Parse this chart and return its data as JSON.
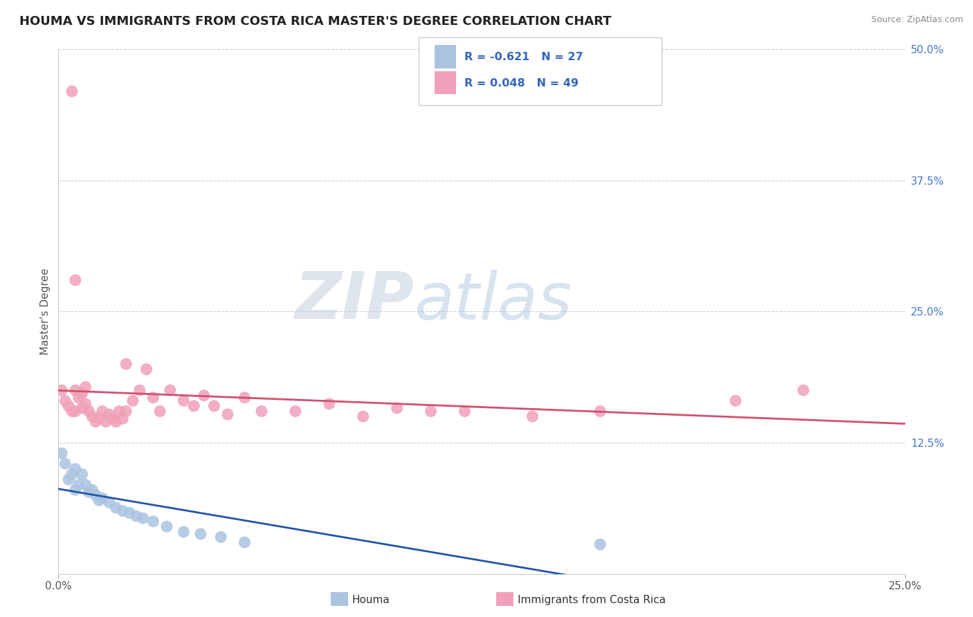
{
  "title": "HOUMA VS IMMIGRANTS FROM COSTA RICA MASTER'S DEGREE CORRELATION CHART",
  "source_text": "Source: ZipAtlas.com",
  "ylabel": "Master's Degree",
  "legend_labels": [
    "Houma",
    "Immigrants from Costa Rica"
  ],
  "legend_R": [
    -0.621,
    0.048
  ],
  "legend_N": [
    27,
    49
  ],
  "blue_color": "#aac4e0",
  "pink_color": "#f0a0b8",
  "blue_line_color": "#2255aa",
  "pink_line_color": "#d05070",
  "xmin": 0.0,
  "xmax": 0.25,
  "ymin": 0.0,
  "ymax": 0.5,
  "yticks": [
    0.0,
    0.125,
    0.25,
    0.375,
    0.5
  ],
  "ytick_labels": [
    "",
    "12.5%",
    "25.0%",
    "37.5%",
    "50.0%"
  ],
  "xtick_labels": [
    "0.0%",
    "25.0%"
  ],
  "grid_color": "#c0cfe0",
  "background_color": "#ffffff",
  "watermark_zip": "ZIP",
  "watermark_atlas": "atlas",
  "title_fontsize": 13,
  "axis_label_fontsize": 11,
  "tick_fontsize": 11,
  "blue_x": [
    0.001,
    0.002,
    0.003,
    0.004,
    0.005,
    0.005,
    0.006,
    0.007,
    0.008,
    0.009,
    0.01,
    0.011,
    0.012,
    0.013,
    0.015,
    0.017,
    0.019,
    0.021,
    0.023,
    0.025,
    0.028,
    0.032,
    0.037,
    0.042,
    0.048,
    0.055,
    0.16
  ],
  "blue_y": [
    0.115,
    0.105,
    0.09,
    0.095,
    0.08,
    0.1,
    0.085,
    0.095,
    0.085,
    0.078,
    0.08,
    0.075,
    0.07,
    0.072,
    0.068,
    0.063,
    0.06,
    0.058,
    0.055,
    0.053,
    0.05,
    0.045,
    0.04,
    0.038,
    0.035,
    0.03,
    0.028
  ],
  "pink_x": [
    0.001,
    0.002,
    0.003,
    0.004,
    0.004,
    0.005,
    0.005,
    0.006,
    0.007,
    0.007,
    0.008,
    0.009,
    0.01,
    0.011,
    0.012,
    0.013,
    0.014,
    0.015,
    0.016,
    0.017,
    0.018,
    0.019,
    0.02,
    0.022,
    0.024,
    0.026,
    0.028,
    0.03,
    0.033,
    0.037,
    0.04,
    0.043,
    0.046,
    0.05,
    0.055,
    0.06,
    0.07,
    0.08,
    0.09,
    0.1,
    0.11,
    0.12,
    0.14,
    0.16,
    0.2,
    0.22,
    0.02,
    0.005,
    0.008
  ],
  "pink_y": [
    0.175,
    0.165,
    0.16,
    0.155,
    0.46,
    0.175,
    0.155,
    0.168,
    0.172,
    0.158,
    0.162,
    0.155,
    0.15,
    0.145,
    0.148,
    0.155,
    0.145,
    0.152,
    0.148,
    0.145,
    0.155,
    0.148,
    0.2,
    0.165,
    0.175,
    0.195,
    0.168,
    0.155,
    0.175,
    0.165,
    0.16,
    0.17,
    0.16,
    0.152,
    0.168,
    0.155,
    0.155,
    0.162,
    0.15,
    0.158,
    0.155,
    0.155,
    0.15,
    0.155,
    0.165,
    0.175,
    0.155,
    0.28,
    0.178
  ]
}
